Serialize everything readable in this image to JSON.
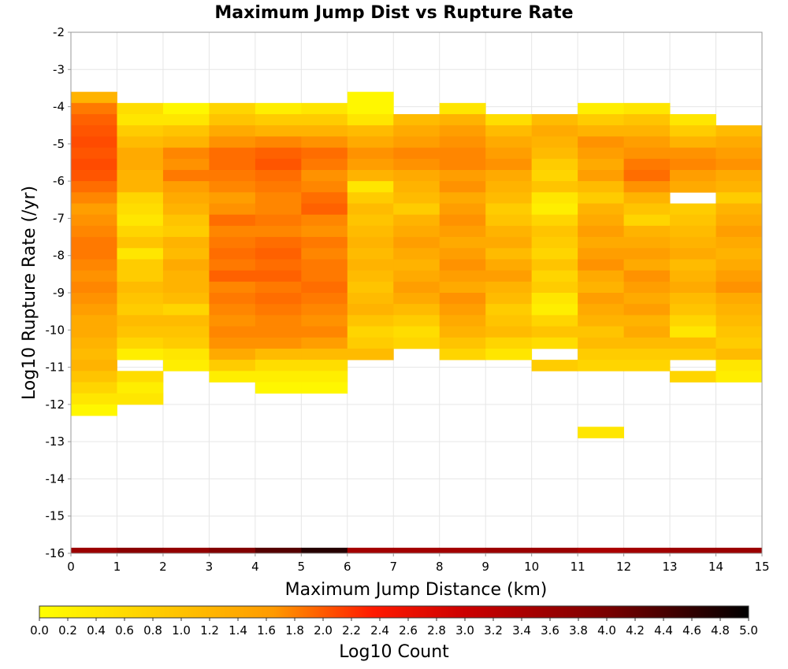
{
  "chart_data": {
    "type": "heatmap",
    "title": "Maximum Jump Dist vs Rupture Rate",
    "xlabel": "Maximum Jump Distance (km)",
    "ylabel": "Log10 Rupture Rate (/yr)",
    "xlim": [
      0,
      15
    ],
    "ylim": [
      -16,
      -2
    ],
    "x_ticks": [
      "0",
      "1",
      "2",
      "3",
      "4",
      "5",
      "6",
      "7",
      "8",
      "9",
      "10",
      "11",
      "12",
      "13",
      "14",
      "15"
    ],
    "y_ticks": [
      "-2",
      "-3",
      "-4",
      "-5",
      "-6",
      "-7",
      "-8",
      "-9",
      "-10",
      "-11",
      "-12",
      "-13",
      "-14",
      "-15",
      "-16"
    ],
    "grid": true,
    "x_bin_width": 1,
    "y_bin_width": 0.3,
    "colorbar": {
      "label": "Log10 Count",
      "range": [
        0,
        5
      ],
      "ticks": [
        "0.0",
        "0.2",
        "0.4",
        "0.6",
        "0.8",
        "1.0",
        "1.2",
        "1.4",
        "1.6",
        "1.8",
        "2.0",
        "2.2",
        "2.4",
        "2.6",
        "2.8",
        "3.0",
        "3.2",
        "3.4",
        "3.6",
        "3.8",
        "4.0",
        "4.2",
        "4.4",
        "4.6",
        "4.8",
        "5.0"
      ]
    },
    "columns": [
      {
        "x": 0,
        "y_top": -3.6,
        "values": [
          0.9,
          1.4,
          1.6,
          1.7,
          1.8,
          1.7,
          1.8,
          1.7,
          1.5,
          1.3,
          1.1,
          1.2,
          1.3,
          1.4,
          1.4,
          1.3,
          1.2,
          1.3,
          1.2,
          1.1,
          1.0,
          1.0,
          0.9,
          0.8,
          0.9,
          0.7,
          0.5,
          0.3,
          0.1
        ]
      },
      {
        "x": 1,
        "y_top": -3.9,
        "values": [
          0.4,
          0.3,
          0.6,
          0.8,
          1.0,
          1.0,
          0.9,
          0.9,
          0.5,
          0.4,
          0.3,
          0.5,
          0.7,
          0.3,
          0.6,
          0.6,
          0.8,
          0.7,
          0.6,
          0.8,
          0.7,
          0.5,
          0.2,
          null,
          0.4,
          0.2,
          0.3
        ]
      },
      {
        "x": 2,
        "y_top": -3.9,
        "values": [
          0.1,
          0.3,
          0.7,
          0.9,
          1.3,
          1.2,
          1.4,
          1.1,
          1.0,
          0.9,
          0.7,
          0.6,
          0.9,
          0.8,
          1.0,
          0.9,
          0.9,
          0.8,
          0.5,
          0.8,
          0.7,
          0.6,
          0.3,
          0.2
        ]
      },
      {
        "x": 3,
        "y_top": -3.9,
        "values": [
          0.5,
          0.7,
          1.0,
          1.2,
          1.5,
          1.5,
          1.4,
          1.3,
          1.1,
          1.2,
          1.5,
          1.3,
          1.4,
          1.5,
          1.4,
          1.6,
          1.3,
          1.4,
          1.3,
          1.2,
          1.3,
          1.2,
          1.0,
          0.6,
          0.2
        ]
      },
      {
        "x": 4,
        "y_top": -3.9,
        "values": [
          0.2,
          0.6,
          0.9,
          1.3,
          1.6,
          1.7,
          1.5,
          1.4,
          1.3,
          1.3,
          1.4,
          1.3,
          1.5,
          1.6,
          1.5,
          1.6,
          1.4,
          1.5,
          1.4,
          1.3,
          1.3,
          1.2,
          0.8,
          0.4,
          0.2,
          0.1
        ]
      },
      {
        "x": 5,
        "y_top": -3.9,
        "values": [
          0.3,
          0.6,
          0.9,
          1.2,
          1.5,
          1.4,
          1.2,
          1.3,
          1.5,
          1.6,
          1.3,
          1.2,
          1.4,
          1.3,
          1.4,
          1.4,
          1.5,
          1.4,
          1.3,
          1.2,
          1.3,
          1.1,
          0.8,
          0.4,
          0.2,
          0.1
        ]
      },
      {
        "x": 6,
        "y_top": -3.6,
        "values": [
          0.1,
          0.1,
          0.3,
          0.8,
          1.0,
          1.2,
          1.1,
          0.9,
          0.3,
          0.6,
          0.8,
          0.7,
          0.8,
          0.9,
          0.8,
          0.9,
          0.8,
          0.7,
          0.8,
          0.9,
          0.7,
          0.5,
          0.6,
          0.8
        ]
      },
      {
        "x": 7,
        "y_top": -4.2,
        "values": [
          0.8,
          1.0,
          1.1,
          1.3,
          1.2,
          1.0,
          0.9,
          0.8,
          0.6,
          0.9,
          1.0,
          1.1,
          1.0,
          0.9,
          1.0,
          1.1,
          1.0,
          0.8,
          0.6,
          0.4,
          0.5
        ]
      },
      {
        "x": 8,
        "y_top": -3.9,
        "values": [
          0.3,
          0.9,
          1.1,
          1.2,
          1.3,
          1.3,
          1.1,
          1.2,
          1.0,
          1.1,
          1.2,
          1.1,
          1.0,
          1.1,
          1.2,
          1.1,
          1.0,
          1.2,
          1.1,
          1.0,
          0.9,
          0.7,
          0.5
        ]
      },
      {
        "x": 9,
        "y_top": -4.2,
        "values": [
          0.4,
          0.8,
          1.0,
          1.1,
          1.2,
          1.0,
          0.9,
          0.8,
          0.6,
          0.7,
          0.9,
          1.0,
          0.8,
          1.0,
          1.1,
          0.9,
          0.8,
          0.6,
          0.7,
          0.8,
          0.5,
          0.3
        ]
      },
      {
        "x": 10,
        "y_top": -4.2,
        "values": [
          0.8,
          1.0,
          0.9,
          0.8,
          0.6,
          0.5,
          0.7,
          0.3,
          0.2,
          0.5,
          0.7,
          0.6,
          0.5,
          0.7,
          0.5,
          0.6,
          0.3,
          0.2,
          0.5,
          0.7,
          0.4,
          null,
          0.6
        ]
      },
      {
        "x": 11,
        "y_top": -3.9,
        "values": [
          0.2,
          0.6,
          0.9,
          1.2,
          1.1,
          1.0,
          1.1,
          0.8,
          0.6,
          0.9,
          1.0,
          1.1,
          1.0,
          1.1,
          1.2,
          1.0,
          0.9,
          1.1,
          1.0,
          0.9,
          0.7,
          0.8,
          0.6,
          0.5,
          null,
          null,
          null,
          null,
          null,
          0.3
        ]
      },
      {
        "x": 12,
        "y_top": -3.9,
        "values": [
          0.3,
          0.7,
          0.9,
          1.1,
          1.2,
          1.4,
          1.5,
          1.2,
          0.9,
          0.7,
          0.5,
          0.9,
          1.0,
          1.1,
          1.0,
          1.2,
          1.1,
          1.0,
          1.1,
          0.9,
          1.0,
          0.8,
          0.6,
          0.5
        ]
      },
      {
        "x": 13,
        "y_top": -4.2,
        "values": [
          0.3,
          0.6,
          0.9,
          1.2,
          1.3,
          1.1,
          1.0,
          null,
          0.6,
          0.7,
          0.8,
          0.9,
          1.0,
          0.8,
          0.9,
          1.0,
          0.8,
          0.7,
          0.5,
          0.3,
          0.8,
          0.6,
          null,
          0.5
        ]
      },
      {
        "x": 14,
        "y_top": -4.5,
        "values": [
          0.8,
          1.0,
          1.1,
          1.2,
          1.0,
          0.9,
          0.6,
          0.9,
          1.0,
          1.1,
          1.0,
          0.9,
          1.0,
          1.1,
          1.2,
          1.0,
          0.9,
          0.8,
          0.7,
          0.6,
          0.8,
          0.3,
          0.2
        ]
      }
    ],
    "bottom_row": {
      "y": -16,
      "values": [
        3.6,
        3.8,
        3.7,
        3.9,
        4.3,
        4.7,
        3.5,
        3.5,
        3.5,
        3.6,
        3.6,
        3.4,
        3.5,
        3.6,
        3.6
      ]
    }
  }
}
